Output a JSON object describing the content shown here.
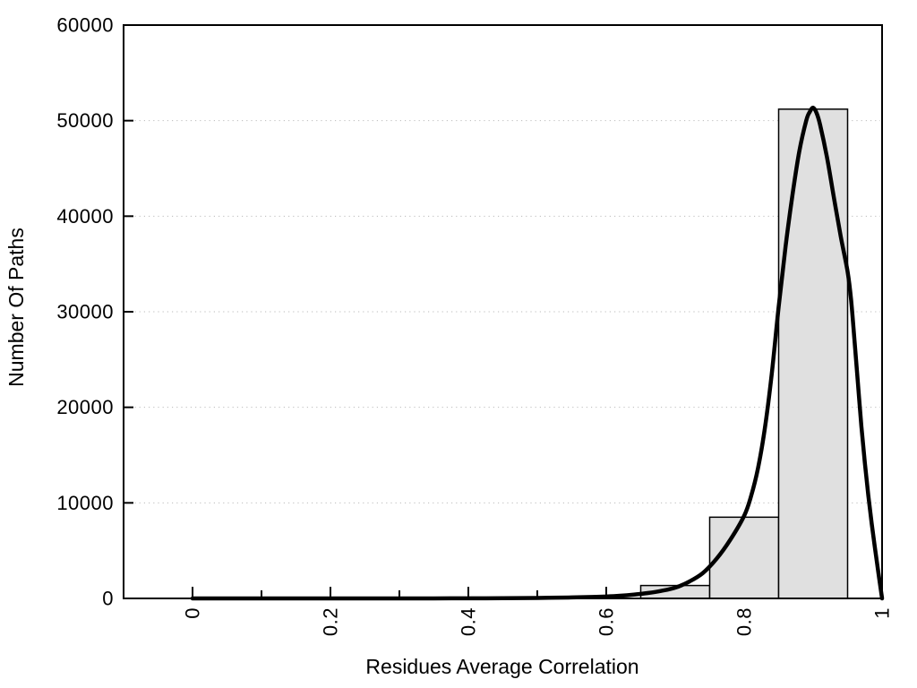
{
  "chart_data": {
    "type": "bar",
    "subtype": "histogram-with-density-curve",
    "title": "",
    "xlabel": "Residues Average Correlation",
    "ylabel": "Number Of Paths",
    "xlim": [
      -0.1,
      1.0
    ],
    "ylim": [
      0,
      60000
    ],
    "grid": "horizontal-dotted-at-y-major-ticks",
    "legend": "none",
    "x_major_ticks": [
      0,
      0.2,
      0.4,
      0.6,
      0.8,
      1
    ],
    "x_major_tick_labels": [
      "0",
      "0.2",
      "0.4",
      "0.6",
      "0.8",
      "1"
    ],
    "x_minor_ticks": [
      0.1,
      0.3,
      0.5,
      0.7,
      0.9
    ],
    "y_ticks": [
      0,
      10000,
      20000,
      30000,
      40000,
      50000,
      60000
    ],
    "y_tick_labels": [
      "0",
      "10000",
      "20000",
      "30000",
      "40000",
      "50000",
      "60000"
    ],
    "bars": [
      {
        "x0": 0.65,
        "x1": 0.75,
        "count": 1350
      },
      {
        "x0": 0.75,
        "x1": 0.85,
        "count": 8500
      },
      {
        "x0": 0.85,
        "x1": 0.95,
        "count": 51200
      }
    ],
    "density_curve": [
      [
        0.0,
        0
      ],
      [
        0.05,
        0
      ],
      [
        0.1,
        0
      ],
      [
        0.15,
        0
      ],
      [
        0.2,
        0
      ],
      [
        0.25,
        0
      ],
      [
        0.3,
        0
      ],
      [
        0.35,
        5
      ],
      [
        0.4,
        10
      ],
      [
        0.45,
        25
      ],
      [
        0.5,
        50
      ],
      [
        0.55,
        100
      ],
      [
        0.58,
        150
      ],
      [
        0.6,
        200
      ],
      [
        0.62,
        280
      ],
      [
        0.64,
        400
      ],
      [
        0.66,
        560
      ],
      [
        0.68,
        790
      ],
      [
        0.7,
        1120
      ],
      [
        0.72,
        1750
      ],
      [
        0.74,
        2650
      ],
      [
        0.76,
        4150
      ],
      [
        0.78,
        6150
      ],
      [
        0.8,
        8650
      ],
      [
        0.81,
        10700
      ],
      [
        0.82,
        13600
      ],
      [
        0.83,
        17800
      ],
      [
        0.84,
        23500
      ],
      [
        0.85,
        30500
      ],
      [
        0.86,
        36800
      ],
      [
        0.87,
        42200
      ],
      [
        0.88,
        46800
      ],
      [
        0.89,
        50000
      ],
      [
        0.895,
        50900
      ],
      [
        0.9,
        51350
      ],
      [
        0.905,
        50800
      ],
      [
        0.91,
        49600
      ],
      [
        0.92,
        46200
      ],
      [
        0.93,
        42000
      ],
      [
        0.94,
        37900
      ],
      [
        0.95,
        34200
      ],
      [
        0.955,
        31300
      ],
      [
        0.96,
        27000
      ],
      [
        0.965,
        22500
      ],
      [
        0.97,
        18000
      ],
      [
        0.975,
        14200
      ],
      [
        0.98,
        10800
      ],
      [
        0.985,
        7800
      ],
      [
        0.99,
        5100
      ],
      [
        0.995,
        2500
      ],
      [
        1.0,
        0
      ]
    ],
    "colors": {
      "background": "#ffffff",
      "bar_fill": "#e0e0e0",
      "bar_stroke": "#000000",
      "curve": "#000000",
      "axis": "#000000",
      "grid": "#bbbbbb",
      "text": "#000000"
    }
  }
}
